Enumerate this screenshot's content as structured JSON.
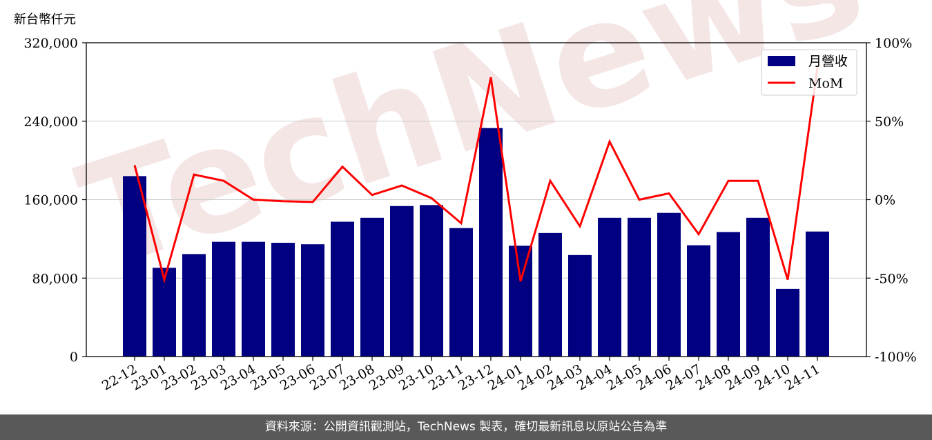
{
  "chart_data": {
    "type": "bar",
    "unit_label": "新台幣仟元",
    "categories": [
      "22-12",
      "23-01",
      "23-02",
      "23-03",
      "23-04",
      "23-05",
      "23-06",
      "23-07",
      "23-08",
      "23-09",
      "23-10",
      "23-11",
      "23-12",
      "24-01",
      "24-02",
      "24-03",
      "24-04",
      "24-05",
      "24-06",
      "24-07",
      "24-08",
      "24-09",
      "24-10",
      "24-11"
    ],
    "series": [
      {
        "name": "月營收",
        "type": "bar",
        "axis": "left",
        "color": "#000080",
        "values": [
          184000,
          90500,
          104500,
          117000,
          117000,
          116000,
          114500,
          137500,
          141500,
          153500,
          154500,
          131000,
          233000,
          113000,
          126000,
          103500,
          141500,
          141500,
          146500,
          113500,
          127000,
          141500,
          69000,
          127500
        ]
      },
      {
        "name": "MoM",
        "type": "line",
        "axis": "right",
        "color": "#ff0000",
        "values": [
          22,
          -51,
          16,
          12,
          0,
          -1,
          -1.5,
          21,
          3,
          9,
          1,
          -15,
          78,
          -52,
          12,
          -17,
          37,
          0,
          4,
          -22,
          12,
          12,
          -51,
          84
        ]
      }
    ],
    "ylim_left": [
      0,
      320000
    ],
    "yticks_left": [
      "0",
      "80,000",
      "160,000",
      "240,000",
      "320,000"
    ],
    "ylim_right": [
      -100,
      100
    ],
    "yticks_right": [
      "-100%",
      "-50%",
      "0%",
      "50%",
      "100%"
    ],
    "grid": true,
    "legend_position": "top-right",
    "watermark": "TechNews"
  },
  "footer": {
    "source_text": "資料來源：公開資訊觀測站，TechNews 製表，確切最新訊息以原站公告為準"
  },
  "colors": {
    "footer_bg": "#595959",
    "grid": "#cccccc",
    "watermark": "#f2dede"
  }
}
